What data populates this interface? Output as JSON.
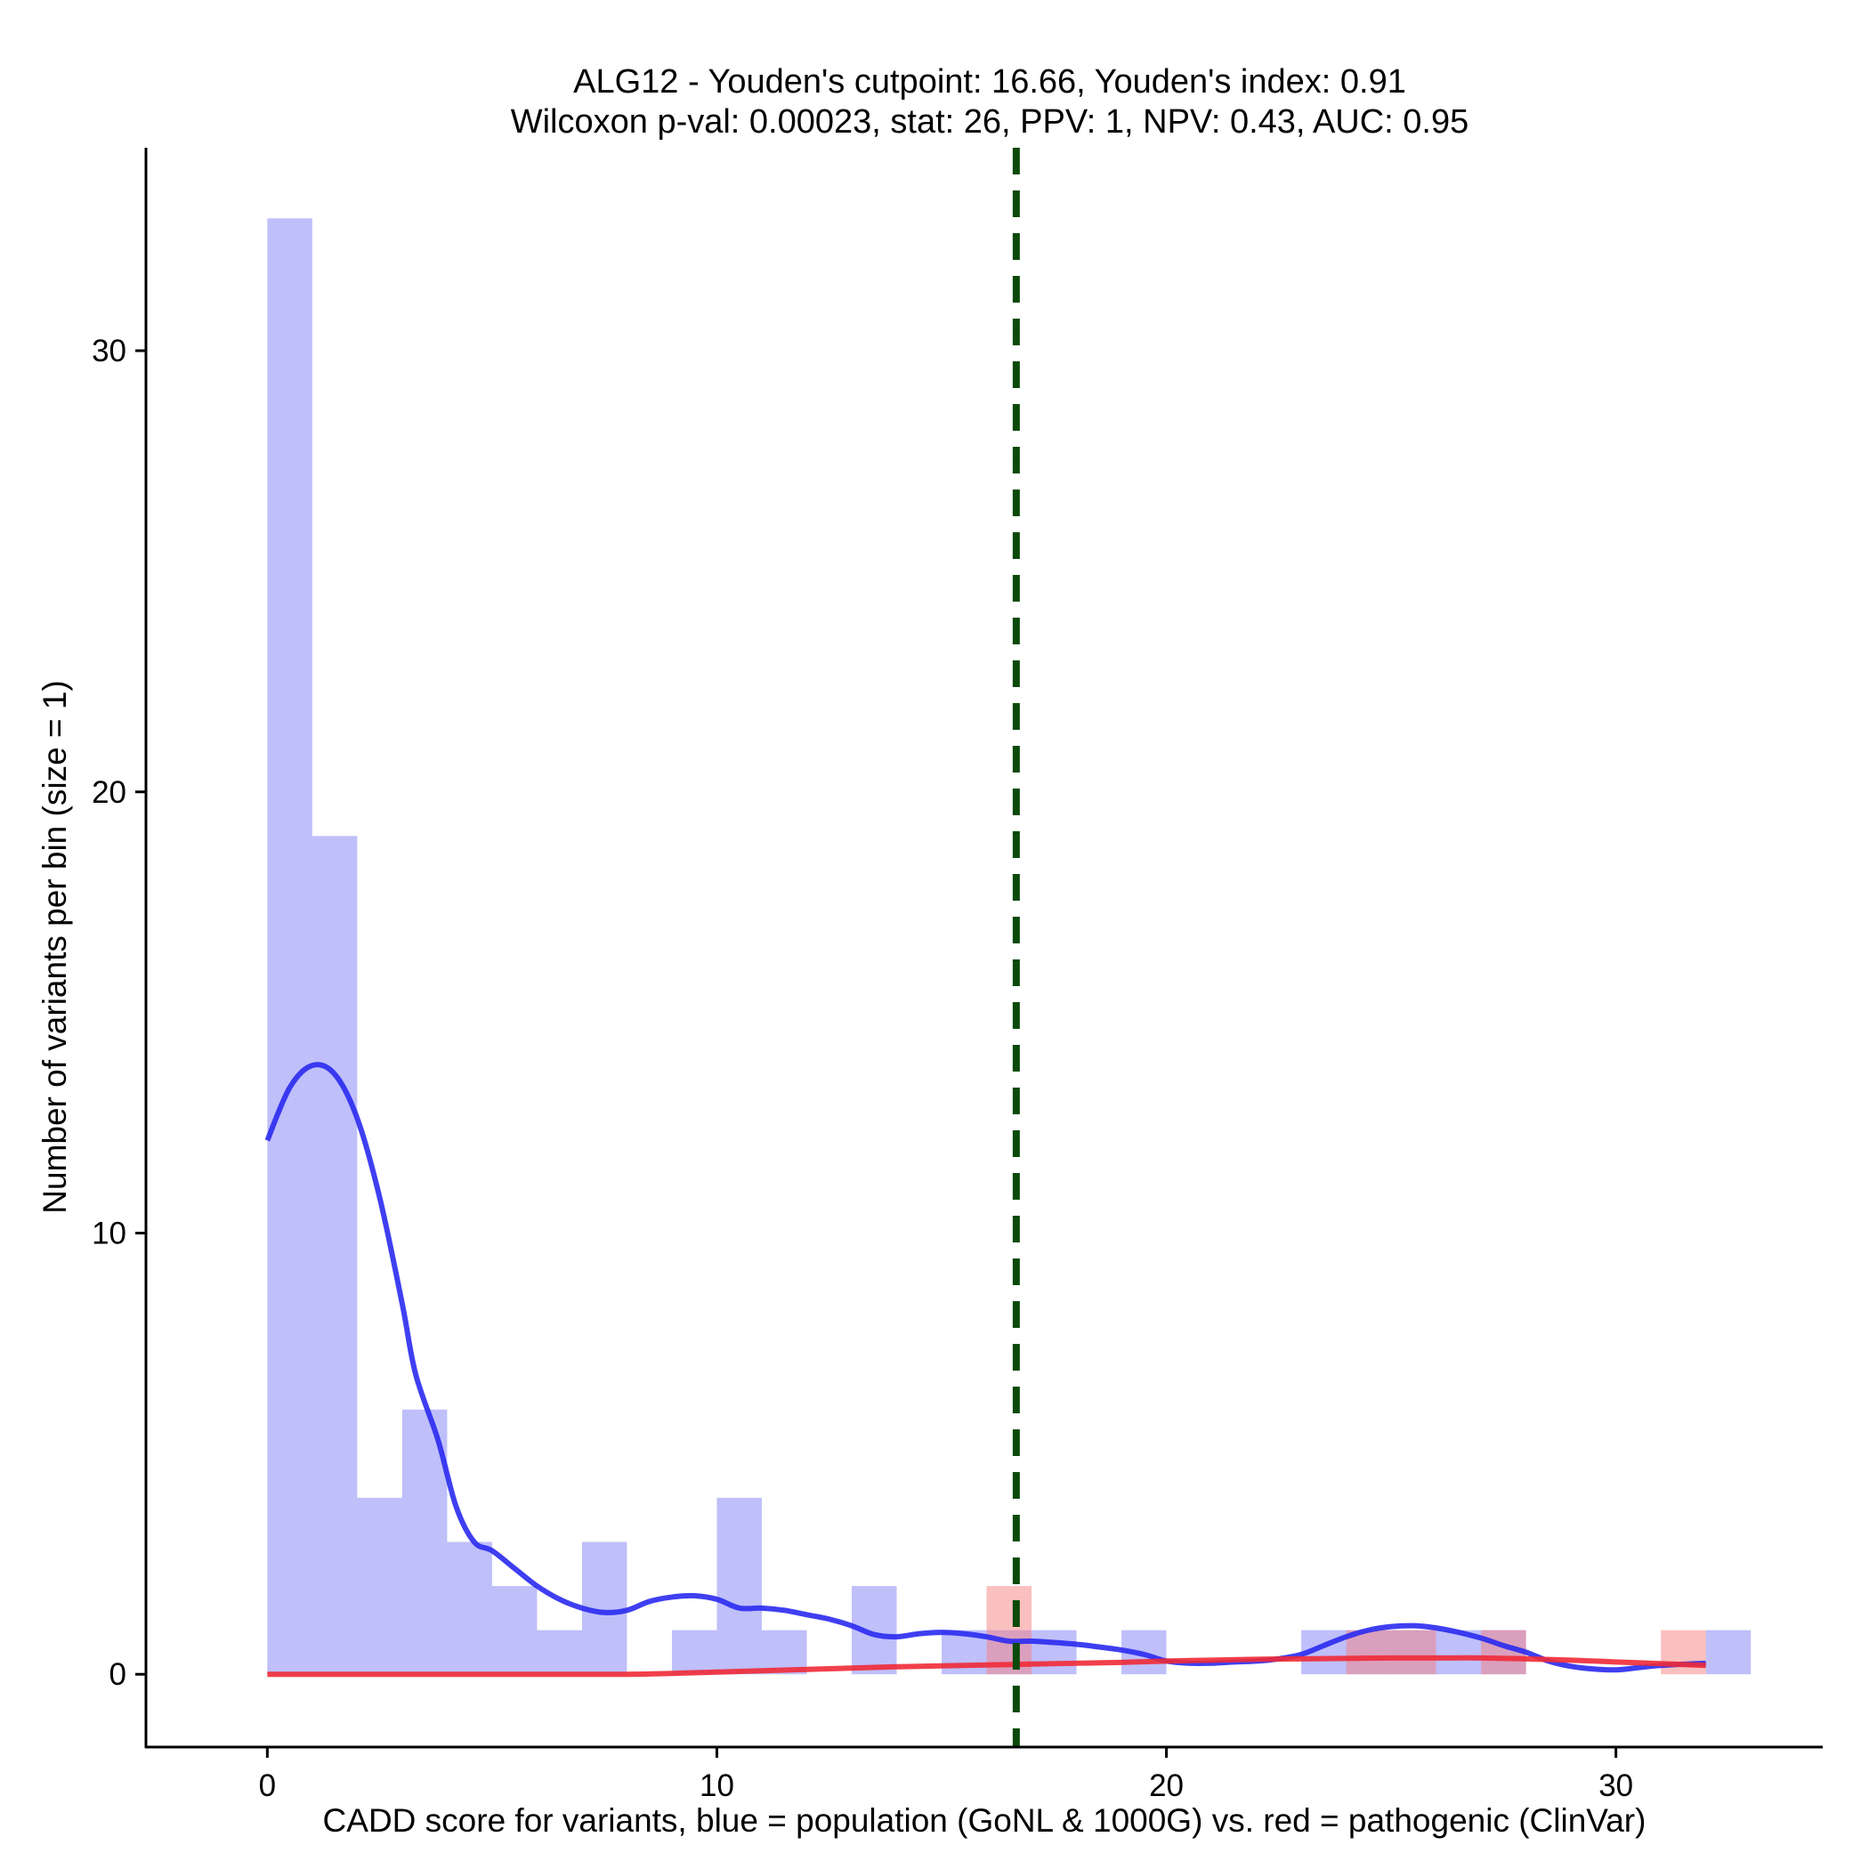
{
  "chart_data": {
    "type": "bar",
    "title_line1": "ALG12 - Youden's cutpoint: 16.66, Youden's index: 0.91",
    "title_line2": "Wilcoxon p-val: 0.00023, stat: 26, PPV: 1, NPV: 0.43, AUC: 0.95",
    "xlabel": "CADD score for variants, blue = population (GoNL & 1000G) vs. red = pathogenic (ClinVar)",
    "ylabel": "Number of variants per bin (size = 1)",
    "xlim": [
      -2.7,
      34.6
    ],
    "ylim": [
      -1.65,
      34.6
    ],
    "x_ticks": [
      0,
      10,
      20,
      30
    ],
    "x_tick_labels": [
      "0",
      "10",
      "20",
      "30"
    ],
    "y_ticks": [
      0,
      10,
      20,
      30
    ],
    "y_tick_labels": [
      "0",
      "10",
      "20",
      "30"
    ],
    "bin_width": 1,
    "cutpoint": 16.66,
    "series": [
      {
        "name": "population (GoNL & 1000G)",
        "color": "#8080f5",
        "opacity": 0.5,
        "bins": [
          {
            "x": 0,
            "count": 33
          },
          {
            "x": 1,
            "count": 19
          },
          {
            "x": 2,
            "count": 4
          },
          {
            "x": 3,
            "count": 6
          },
          {
            "x": 4,
            "count": 3
          },
          {
            "x": 5,
            "count": 2
          },
          {
            "x": 6,
            "count": 1
          },
          {
            "x": 7,
            "count": 3
          },
          {
            "x": 9,
            "count": 1
          },
          {
            "x": 10,
            "count": 4
          },
          {
            "x": 11,
            "count": 1
          },
          {
            "x": 13,
            "count": 2
          },
          {
            "x": 15,
            "count": 1
          },
          {
            "x": 16,
            "count": 1
          },
          {
            "x": 17,
            "count": 1
          },
          {
            "x": 19,
            "count": 1
          },
          {
            "x": 23,
            "count": 1
          },
          {
            "x": 24,
            "count": 1
          },
          {
            "x": 25,
            "count": 1
          },
          {
            "x": 26,
            "count": 1
          },
          {
            "x": 27,
            "count": 1
          },
          {
            "x": 32,
            "count": 1
          }
        ]
      },
      {
        "name": "pathogenic (ClinVar)",
        "color": "#f58080",
        "opacity": 0.5,
        "bins": [
          {
            "x": 16,
            "count": 2
          },
          {
            "x": 24,
            "count": 1
          },
          {
            "x": 25,
            "count": 1
          },
          {
            "x": 27,
            "count": 1
          },
          {
            "x": 31,
            "count": 1
          }
        ]
      }
    ],
    "density_lines": [
      {
        "name": "population density",
        "color": "#2a2af0",
        "points": [
          [
            0,
            12.1
          ],
          [
            0.5,
            13.3
          ],
          [
            1,
            13.8
          ],
          [
            1.5,
            13.6
          ],
          [
            2,
            12.6
          ],
          [
            2.5,
            10.8
          ],
          [
            3,
            8.4
          ],
          [
            3.3,
            6.8
          ],
          [
            3.8,
            5.3
          ],
          [
            4.2,
            3.8
          ],
          [
            4.6,
            3.0
          ],
          [
            5,
            2.8
          ],
          [
            5.5,
            2.4
          ],
          [
            6,
            2.0
          ],
          [
            6.5,
            1.7
          ],
          [
            7,
            1.5
          ],
          [
            7.5,
            1.4
          ],
          [
            8,
            1.45
          ],
          [
            8.5,
            1.65
          ],
          [
            9,
            1.75
          ],
          [
            9.5,
            1.78
          ],
          [
            10,
            1.7
          ],
          [
            10.5,
            1.5
          ],
          [
            11,
            1.5
          ],
          [
            11.5,
            1.45
          ],
          [
            12,
            1.35
          ],
          [
            12.5,
            1.25
          ],
          [
            13,
            1.1
          ],
          [
            13.5,
            0.9
          ],
          [
            14,
            0.85
          ],
          [
            14.5,
            0.92
          ],
          [
            15,
            0.95
          ],
          [
            15.5,
            0.92
          ],
          [
            16,
            0.85
          ],
          [
            16.5,
            0.75
          ],
          [
            17,
            0.75
          ],
          [
            17.5,
            0.72
          ],
          [
            18,
            0.68
          ],
          [
            18.5,
            0.62
          ],
          [
            19,
            0.55
          ],
          [
            19.5,
            0.45
          ],
          [
            20,
            0.3
          ],
          [
            20.5,
            0.25
          ],
          [
            21,
            0.25
          ],
          [
            21.5,
            0.28
          ],
          [
            22,
            0.3
          ],
          [
            22.5,
            0.35
          ],
          [
            23,
            0.45
          ],
          [
            23.5,
            0.65
          ],
          [
            24,
            0.85
          ],
          [
            24.5,
            1.0
          ],
          [
            25,
            1.08
          ],
          [
            25.5,
            1.1
          ],
          [
            26,
            1.05
          ],
          [
            26.5,
            0.95
          ],
          [
            27,
            0.82
          ],
          [
            27.5,
            0.65
          ],
          [
            28,
            0.5
          ],
          [
            28.5,
            0.3
          ],
          [
            29,
            0.18
          ],
          [
            29.5,
            0.12
          ],
          [
            30,
            0.1
          ],
          [
            30.5,
            0.15
          ],
          [
            31,
            0.2
          ],
          [
            32,
            0.25
          ]
        ]
      },
      {
        "name": "pathogenic density",
        "color": "#f02a36",
        "points": [
          [
            0,
            0.0
          ],
          [
            2,
            0.0
          ],
          [
            4,
            0.0
          ],
          [
            6,
            0.0
          ],
          [
            8,
            0.0
          ],
          [
            9,
            0.02
          ],
          [
            10,
            0.05
          ],
          [
            11,
            0.08
          ],
          [
            12,
            0.11
          ],
          [
            13,
            0.14
          ],
          [
            14,
            0.17
          ],
          [
            15,
            0.19
          ],
          [
            16,
            0.21
          ],
          [
            17,
            0.23
          ],
          [
            18,
            0.25
          ],
          [
            19,
            0.27
          ],
          [
            20,
            0.3
          ],
          [
            21,
            0.32
          ],
          [
            22,
            0.34
          ],
          [
            23,
            0.35
          ],
          [
            24,
            0.36
          ],
          [
            25,
            0.37
          ],
          [
            26,
            0.37
          ],
          [
            27,
            0.37
          ],
          [
            28,
            0.35
          ],
          [
            29,
            0.32
          ],
          [
            30,
            0.28
          ],
          [
            31,
            0.24
          ],
          [
            32,
            0.2
          ]
        ]
      }
    ],
    "cutpoint_line": {
      "color": "#0b4a0b",
      "style": "dashed"
    }
  }
}
